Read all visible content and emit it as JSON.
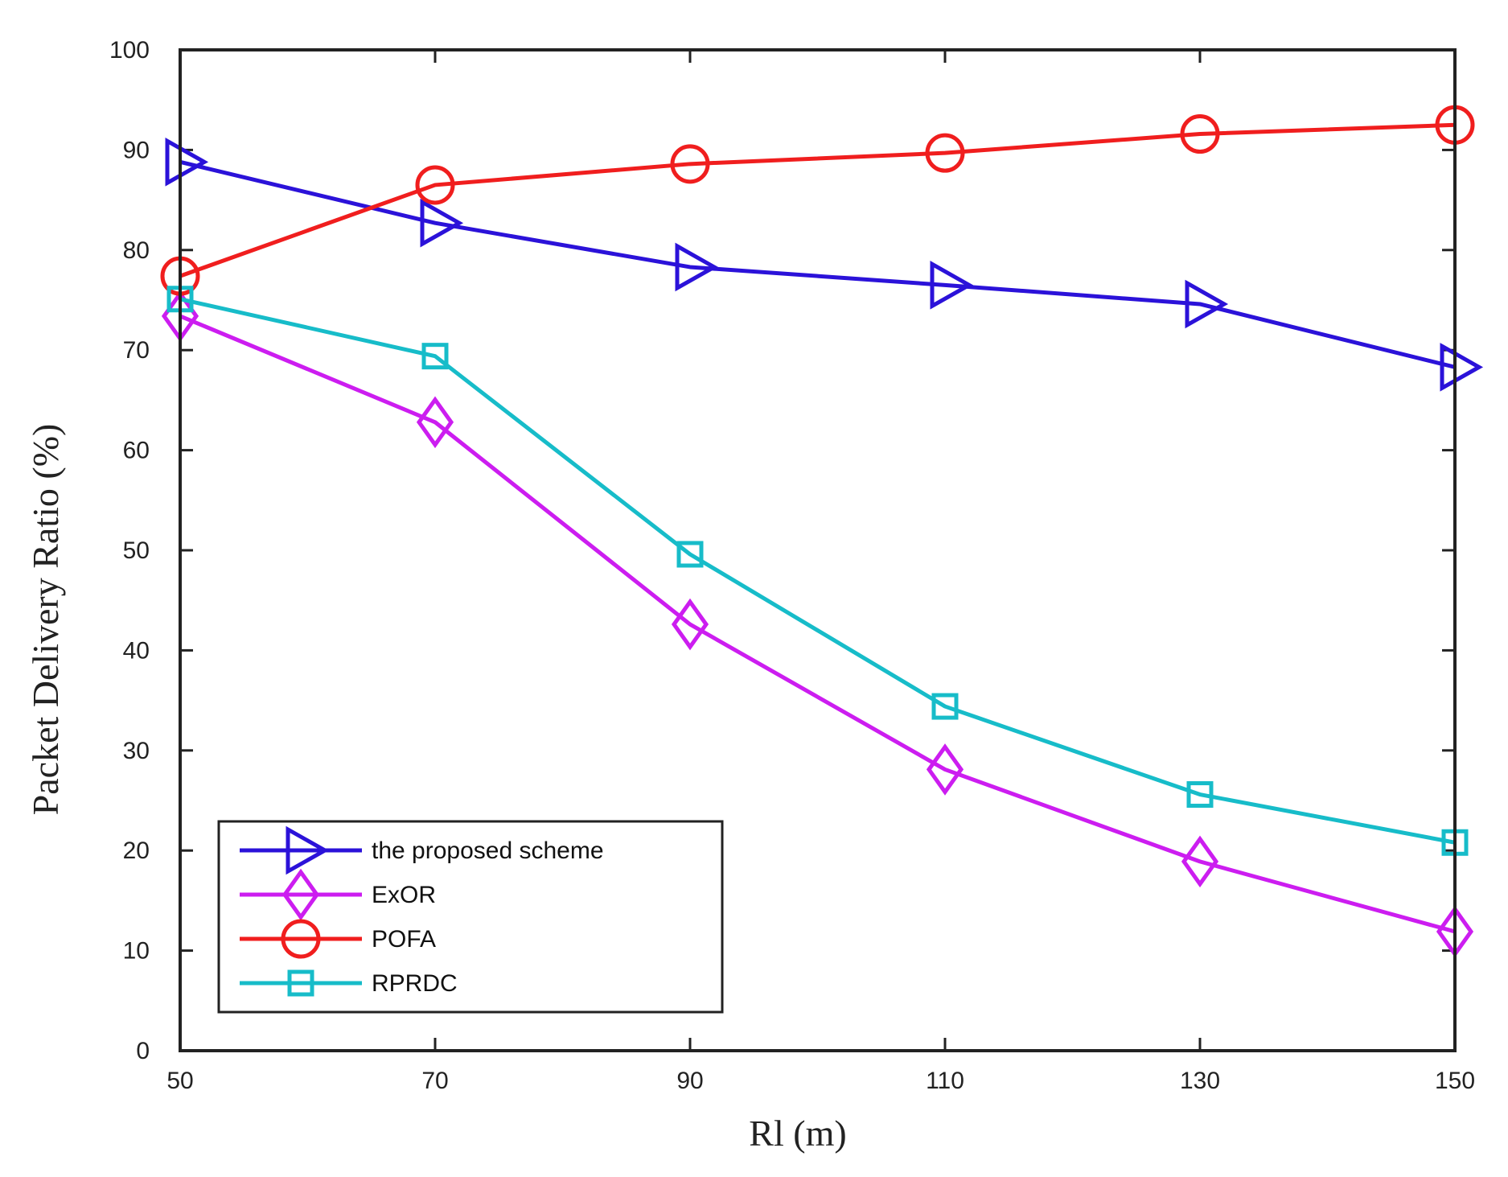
{
  "chart_data": {
    "type": "line",
    "title": "",
    "xlabel": "Rl (m)",
    "ylabel": "Packet Delivery Ratio (%)",
    "x": [
      50,
      70,
      90,
      110,
      130,
      150
    ],
    "xlim": [
      50,
      150
    ],
    "ylim": [
      0,
      100
    ],
    "xticks": [
      50,
      70,
      90,
      110,
      130,
      150
    ],
    "yticks": [
      0,
      10,
      20,
      30,
      40,
      50,
      60,
      70,
      80,
      90,
      100
    ],
    "grid": false,
    "legend_position": "bottom-left",
    "series": [
      {
        "name": "the proposed scheme",
        "marker": "triangle-right",
        "color": "#2b12d9",
        "values": [
          88.8,
          82.7,
          78.3,
          76.5,
          74.6,
          68.3
        ]
      },
      {
        "name": "ExOR",
        "marker": "diamond",
        "color": "#cc1df0",
        "values": [
          73.4,
          62.8,
          42.6,
          28.1,
          18.9,
          11.9
        ]
      },
      {
        "name": "POFA",
        "marker": "circle",
        "color": "#f01e1e",
        "values": [
          77.4,
          86.5,
          88.6,
          89.7,
          91.6,
          92.5
        ]
      },
      {
        "name": "RPRDC",
        "marker": "square",
        "color": "#17bcc9",
        "values": [
          75.1,
          69.4,
          49.6,
          34.4,
          25.6,
          20.8
        ]
      }
    ]
  }
}
